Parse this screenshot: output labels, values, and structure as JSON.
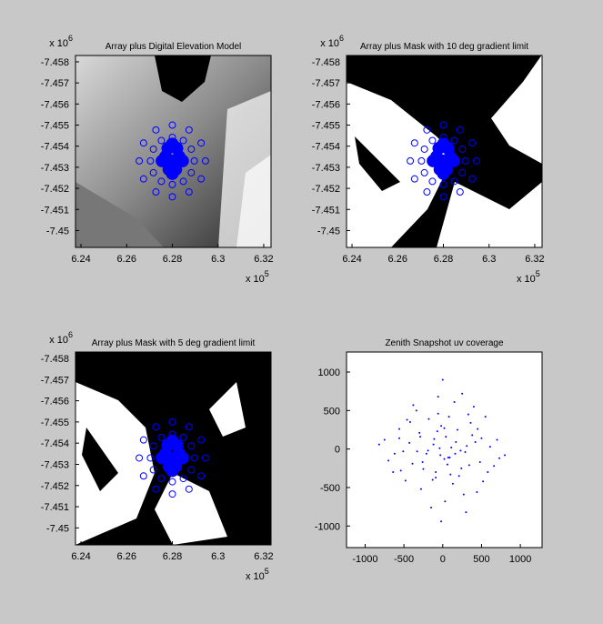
{
  "chart_data": [
    {
      "type": "scatter",
      "title": "Array plus Digital Elevation Model",
      "xlim": [
        6.2376,
        6.3232
      ],
      "ylim": [
        -7.4583,
        -7.4492
      ],
      "y_reversed": true,
      "xticks": [
        6.24,
        6.26,
        6.28,
        6.3,
        6.32
      ],
      "yticks": [
        -7.458,
        -7.457,
        -7.456,
        -7.455,
        -7.454,
        -7.453,
        -7.452,
        -7.451,
        -7.45
      ],
      "x_multiplier": {
        "base": "x 10",
        "power": "5"
      },
      "y_multiplier": {
        "base": "x 10",
        "power": "6"
      },
      "series": [
        {
          "marker": "circle-open",
          "color": "#0000ff",
          "x": [
            6.2945,
            6.2926,
            6.2873,
            6.28,
            6.2728,
            6.2674,
            6.2655,
            6.2674,
            6.2728,
            6.28,
            6.2873,
            6.2926,
            6.2896,
            6.2883,
            6.2848,
            6.28,
            6.2752,
            6.2717,
            6.2704,
            6.2717,
            6.2752,
            6.28,
            6.2848,
            6.2883
          ],
          "y": [
            -7.4533,
            -7.45245,
            -7.45183,
            -7.4516,
            -7.45183,
            -7.45245,
            -7.4533,
            -7.45415,
            -7.45477,
            -7.455,
            -7.45477,
            -7.45415,
            -7.4533,
            -7.45274,
            -7.45233,
            -7.45218,
            -7.45233,
            -7.45274,
            -7.4533,
            -7.45386,
            -7.45427,
            -7.45442,
            -7.45427,
            -7.45386
          ]
        },
        {
          "marker": "filled",
          "color": "#0000ff",
          "x": [
            6.28,
            6.283,
            6.277,
            6.2815,
            6.2785,
            6.2845,
            6.2755,
            6.28,
            6.282,
            6.278,
            6.28,
            6.281
          ],
          "y": [
            -7.4533,
            -7.4535,
            -7.4535,
            -7.4529,
            -7.4529,
            -7.4533,
            -7.4533,
            -7.4527,
            -7.4539,
            -7.4539,
            -7.4541,
            -7.4531
          ]
        }
      ]
    },
    {
      "type": "scatter",
      "title": "Array plus Mask with 10 deg gradient limit",
      "xlim": [
        6.2376,
        6.3232
      ],
      "ylim": [
        -7.4583,
        -7.4492
      ],
      "y_reversed": true,
      "xticks": [
        6.24,
        6.26,
        6.28,
        6.3,
        6.32
      ],
      "yticks": [
        -7.458,
        -7.457,
        -7.456,
        -7.455,
        -7.454,
        -7.453,
        -7.452,
        -7.451,
        -7.45
      ],
      "x_multiplier": {
        "base": "x 10",
        "power": "5"
      },
      "y_multiplier": {
        "base": "x 10",
        "power": "6"
      },
      "series": [
        {
          "marker": "circle-open",
          "color": "#0000ff",
          "x": [
            6.2945,
            6.2926,
            6.2873,
            6.28,
            6.2728,
            6.2674,
            6.2655,
            6.2674,
            6.2728,
            6.28,
            6.2873,
            6.2926,
            6.2896,
            6.2883,
            6.2848,
            6.28,
            6.2752,
            6.2717,
            6.2704,
            6.2717,
            6.2752,
            6.28,
            6.2848,
            6.2883
          ],
          "y": [
            -7.4533,
            -7.45245,
            -7.45183,
            -7.4516,
            -7.45183,
            -7.45245,
            -7.4533,
            -7.45415,
            -7.45477,
            -7.455,
            -7.45477,
            -7.45415,
            -7.4533,
            -7.45274,
            -7.45233,
            -7.45218,
            -7.45233,
            -7.45274,
            -7.4533,
            -7.45386,
            -7.45427,
            -7.45442,
            -7.45427,
            -7.45386
          ]
        },
        {
          "marker": "filled",
          "color": "#0000ff",
          "x": [
            6.28,
            6.283,
            6.277,
            6.2815,
            6.2785,
            6.2845,
            6.2755,
            6.28,
            6.282,
            6.278,
            6.28,
            6.281
          ],
          "y": [
            -7.4533,
            -7.4535,
            -7.4535,
            -7.4529,
            -7.4529,
            -7.4533,
            -7.4533,
            -7.4527,
            -7.4539,
            -7.4539,
            -7.4541,
            -7.4531
          ]
        }
      ]
    },
    {
      "type": "scatter",
      "title": "Array plus Mask with 5 deg gradient limit",
      "xlim": [
        6.2376,
        6.3232
      ],
      "ylim": [
        -7.4583,
        -7.4492
      ],
      "y_reversed": true,
      "xticks": [
        6.24,
        6.26,
        6.28,
        6.3,
        6.32
      ],
      "yticks": [
        -7.458,
        -7.457,
        -7.456,
        -7.455,
        -7.454,
        -7.453,
        -7.452,
        -7.451,
        -7.45
      ],
      "x_multiplier": {
        "base": "x 10",
        "power": "5"
      },
      "y_multiplier": {
        "base": "x 10",
        "power": "6"
      },
      "series": [
        {
          "marker": "circle-open",
          "color": "#0000ff",
          "x": [
            6.2945,
            6.2926,
            6.2873,
            6.28,
            6.2728,
            6.2674,
            6.2655,
            6.2674,
            6.2728,
            6.28,
            6.2873,
            6.2926,
            6.2896,
            6.2883,
            6.2848,
            6.28,
            6.2752,
            6.2717,
            6.2704,
            6.2717,
            6.2752,
            6.28,
            6.2848,
            6.2883
          ],
          "y": [
            -7.4533,
            -7.45245,
            -7.45183,
            -7.4516,
            -7.45183,
            -7.45245,
            -7.4533,
            -7.45415,
            -7.45477,
            -7.455,
            -7.45477,
            -7.45415,
            -7.4533,
            -7.45274,
            -7.45233,
            -7.45218,
            -7.45233,
            -7.45274,
            -7.4533,
            -7.45386,
            -7.45427,
            -7.45442,
            -7.45427,
            -7.45386
          ]
        },
        {
          "marker": "filled",
          "color": "#0000ff",
          "x": [
            6.28,
            6.283,
            6.277,
            6.2815,
            6.2785,
            6.2845,
            6.2755,
            6.28,
            6.282,
            6.278,
            6.28,
            6.281
          ],
          "y": [
            -7.4533,
            -7.4535,
            -7.4535,
            -7.4529,
            -7.4529,
            -7.4533,
            -7.4533,
            -7.4527,
            -7.4539,
            -7.4539,
            -7.4541,
            -7.4531
          ]
        }
      ]
    },
    {
      "type": "scatter",
      "title": "Zenith Snapshot uv coverage",
      "xlim": [
        -1240,
        1280
      ],
      "ylim": [
        -1280,
        1260
      ],
      "y_reversed": false,
      "xticks": [
        -1000,
        -500,
        0,
        500,
        1000
      ],
      "yticks": [
        -1000,
        -500,
        0,
        500,
        1000
      ],
      "series": [
        {
          "marker": "dot",
          "color": "#0000ff",
          "x": [
            -120,
            340,
            -560,
            80,
            210,
            -30,
            450,
            -280,
            610,
            -390,
            150,
            -70,
            290,
            -640,
            30,
            380,
            -180,
            520,
            -430,
            90,
            -250,
            700,
            -20,
            160,
            -340,
            270,
            -510,
            40,
            580,
            -130,
            330,
            -700,
            110,
            -60,
            420,
            -300,
            240,
            -460,
            20,
            660,
            -210,
            130,
            -380,
            500,
            -90,
            310,
            -560,
            70,
            -150,
            800,
            -820,
            0,
            190,
            -260,
            440,
            -40,
            360,
            -620,
            100,
            -330,
            550,
            -110,
            250,
            -480,
            60,
            -20,
            730,
            -190,
            400,
            -750,
            170,
            -90,
            300,
            -420,
            20,
            -290,
            480,
            -60,
            230,
            -540
          ],
          "y": [
            60,
            -210,
            140,
            420,
            -350,
            -80,
            260,
            -520,
            30,
            -190,
            610,
            230,
            -40,
            -300,
            -680,
            180,
            390,
            -420,
            80,
            -110,
            -260,
            120,
            300,
            -60,
            500,
            -590,
            -30,
            160,
            -300,
            -400,
            450,
            -150,
            20,
            680,
            90,
            210,
            -250,
            380,
            -130,
            -220,
            -60,
            -450,
            570,
            140,
            -300,
            40,
            260,
            -110,
            -760,
            -80,
            60,
            900,
            250,
            -170,
            -560,
            10,
            340,
            -60,
            -330,
            -30,
            420,
            130,
            720,
            -410,
            -200,
            -940,
            -120,
            -20,
            550,
            120,
            90,
            -370,
            -820,
            350,
            270,
            160,
            -170,
            460,
            -20,
            -280
          ]
        }
      ]
    }
  ]
}
